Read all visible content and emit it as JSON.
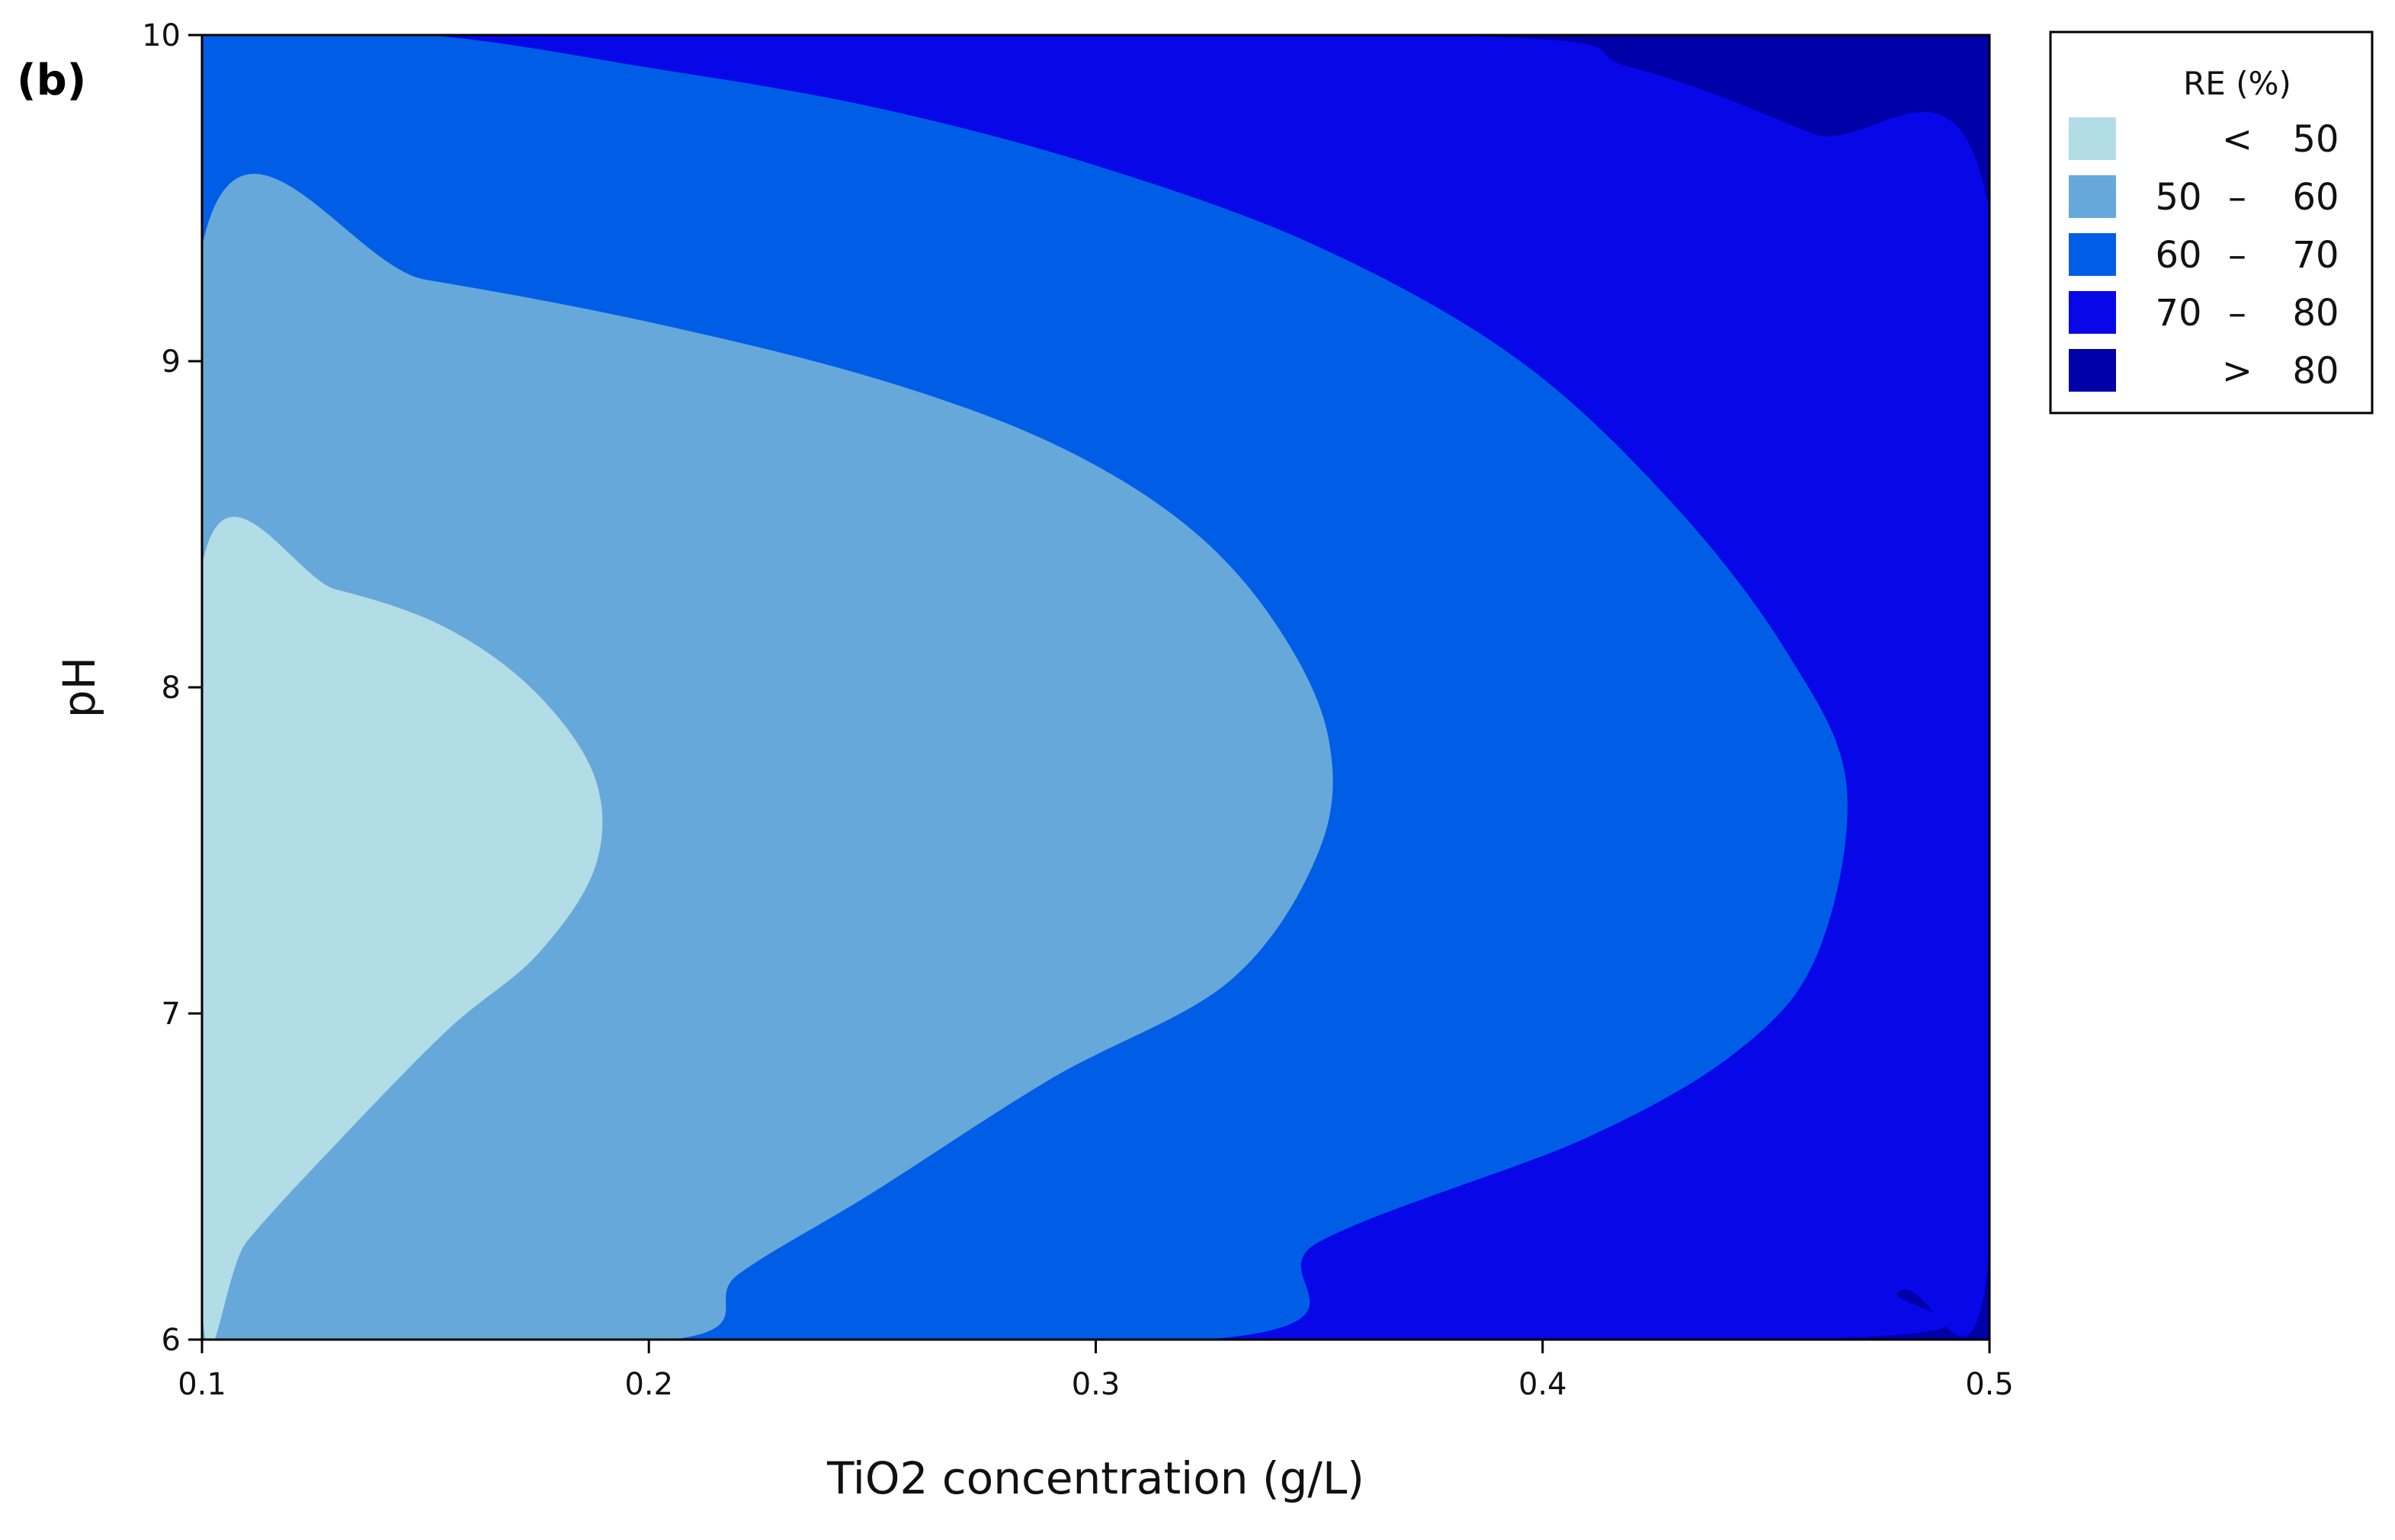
{
  "panel_label": "(b)",
  "chart_data": {
    "type": "contour",
    "xlabel": "TiO2 concentration (g/L)",
    "ylabel": "pH",
    "xlim": [
      0.1,
      0.5
    ],
    "ylim": [
      6,
      10
    ],
    "xticks": [
      "0.1",
      "0.2",
      "0.3",
      "0.4",
      "0.5"
    ],
    "yticks": [
      "6",
      "7",
      "8",
      "9",
      "10"
    ],
    "legend": {
      "title": "RE (%)",
      "placement": "top-right, outside plot",
      "entries": [
        {
          "low": "",
          "op": "<",
          "high": "50",
          "color": "#b2dce6"
        },
        {
          "low": "50",
          "op": "–",
          "high": "60",
          "color": "#67a8da"
        },
        {
          "low": "60",
          "op": "–",
          "high": "70",
          "color": "#005ee6"
        },
        {
          "low": "70",
          "op": "–",
          "high": "80",
          "color": "#0707e8"
        },
        {
          "low": "",
          "op": ">",
          "high": "80",
          "color": "#0000a8"
        }
      ]
    },
    "background_level_color": "#0000a8",
    "contours": [
      {
        "level": 80,
        "fill": "#0707e8",
        "points": [
          [
            0.1,
            6
          ],
          [
            0.1,
            10
          ],
          [
            0.375,
            10
          ],
          [
            0.42,
            9.9
          ],
          [
            0.46,
            9.7
          ],
          [
            0.5,
            9.45
          ],
          [
            0.5,
            6.28
          ],
          [
            0.48,
            6.15
          ],
          [
            0.458,
            6
          ]
        ]
      },
      {
        "level": 70,
        "fill": "#005ee6",
        "points": [
          [
            0.1,
            6
          ],
          [
            0.1,
            10
          ],
          [
            0.15,
            10
          ],
          [
            0.2,
            9.9
          ],
          [
            0.25,
            9.78
          ],
          [
            0.3,
            9.6
          ],
          [
            0.35,
            9.35
          ],
          [
            0.395,
            9
          ],
          [
            0.43,
            8.55
          ],
          [
            0.455,
            8.1
          ],
          [
            0.468,
            7.7
          ],
          [
            0.462,
            7.2
          ],
          [
            0.445,
            6.9
          ],
          [
            0.41,
            6.62
          ],
          [
            0.35,
            6.3
          ],
          [
            0.325,
            6
          ]
        ]
      },
      {
        "level": 60,
        "fill": "#67a8da",
        "points": [
          [
            0.1,
            6
          ],
          [
            0.1,
            9.35
          ],
          [
            0.15,
            9.25
          ],
          [
            0.2,
            9.12
          ],
          [
            0.25,
            8.95
          ],
          [
            0.29,
            8.75
          ],
          [
            0.32,
            8.5
          ],
          [
            0.34,
            8.2
          ],
          [
            0.352,
            7.85
          ],
          [
            0.35,
            7.5
          ],
          [
            0.33,
            7.1
          ],
          [
            0.29,
            6.8
          ],
          [
            0.25,
            6.45
          ],
          [
            0.22,
            6.2
          ],
          [
            0.205,
            6
          ]
        ]
      },
      {
        "level": 50,
        "fill": "#b2dce6",
        "points": [
          [
            0.1,
            6.1
          ],
          [
            0.1,
            8.37
          ],
          [
            0.13,
            8.3
          ],
          [
            0.155,
            8.18
          ],
          [
            0.175,
            7.98
          ],
          [
            0.188,
            7.72
          ],
          [
            0.188,
            7.45
          ],
          [
            0.175,
            7.18
          ],
          [
            0.155,
            6.95
          ],
          [
            0.13,
            6.6
          ],
          [
            0.11,
            6.3
          ]
        ]
      }
    ]
  }
}
